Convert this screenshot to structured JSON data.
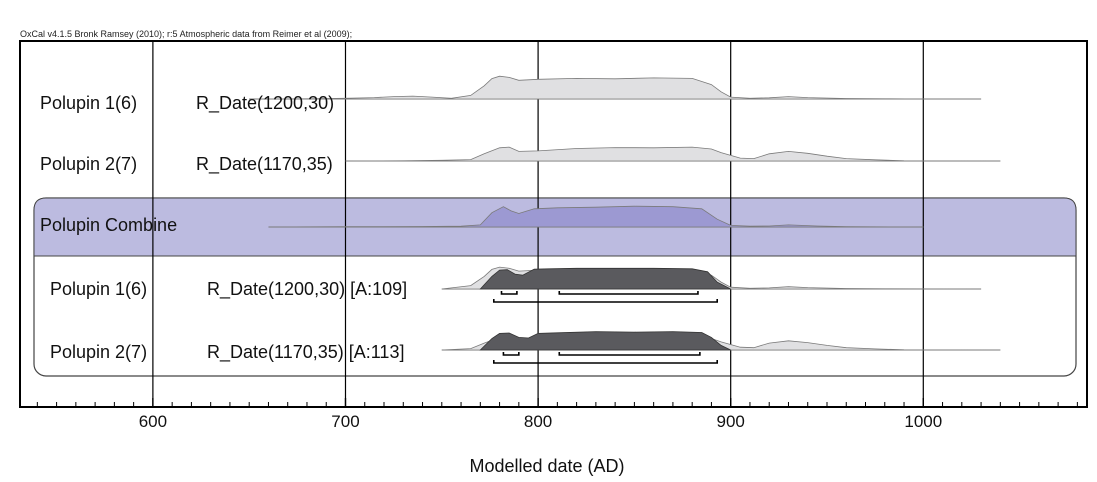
{
  "header": "OxCal v4.1.5 Bronk Ramsey (2010); r:5 Atmospheric data from Reimer et al (2009);",
  "chart_data": {
    "type": "area",
    "title": "",
    "xlabel": "Modelled date (AD)",
    "xlim": [
      531,
      1085
    ],
    "xticks": [
      600,
      700,
      800,
      900,
      1000
    ],
    "minor_tick_step": 10,
    "grid": "vertical lines at major ticks",
    "colors": {
      "prior_fill": "#e0e0e2",
      "prior_stroke": "#7a7a7a",
      "posterior_fill": "#5a5a5e",
      "combine_fill": "#9c99d2",
      "combine_band": "#bcbbe0",
      "frame": "#000000"
    },
    "rows": [
      {
        "label": "Polupin 1(6)",
        "model": "R_Date(1200,30)",
        "kind": "prior",
        "range": [
          650,
          1030
        ],
        "x": [
          650,
          680,
          700,
          715,
          725,
          735,
          745,
          755,
          765,
          772,
          776,
          780,
          785,
          790,
          800,
          820,
          840,
          860,
          880,
          890,
          895,
          900,
          910,
          920,
          930,
          940,
          960,
          980,
          1000,
          1030
        ],
        "y": [
          0.0,
          0.01,
          0.03,
          0.06,
          0.1,
          0.12,
          0.08,
          0.03,
          0.15,
          0.55,
          0.85,
          0.95,
          0.9,
          0.78,
          0.82,
          0.86,
          0.84,
          0.88,
          0.86,
          0.6,
          0.3,
          0.08,
          0.03,
          0.05,
          0.1,
          0.06,
          0.02,
          0.01,
          0.0,
          0.0
        ]
      },
      {
        "label": "Polupin 2(7)",
        "model": "R_Date(1170,35)",
        "kind": "prior",
        "range": [
          700,
          1040
        ],
        "x": [
          700,
          730,
          750,
          765,
          772,
          780,
          785,
          790,
          800,
          820,
          840,
          860,
          880,
          890,
          895,
          905,
          912,
          920,
          930,
          940,
          950,
          960,
          975,
          990,
          1040
        ],
        "y": [
          0.0,
          0.01,
          0.03,
          0.06,
          0.3,
          0.55,
          0.58,
          0.4,
          0.42,
          0.52,
          0.56,
          0.55,
          0.58,
          0.5,
          0.35,
          0.12,
          0.1,
          0.3,
          0.4,
          0.32,
          0.2,
          0.1,
          0.05,
          0.01,
          0.0
        ]
      },
      {
        "label": "Polupin Combine",
        "model": "",
        "kind": "combine",
        "range": [
          660,
          1000
        ],
        "x": [
          660,
          700,
          720,
          740,
          760,
          770,
          776,
          782,
          786,
          790,
          798,
          810,
          830,
          850,
          870,
          885,
          893,
          900,
          910,
          920,
          930,
          945,
          960,
          1000
        ],
        "y": [
          0.0,
          0.01,
          0.01,
          0.02,
          0.03,
          0.08,
          0.55,
          0.78,
          0.62,
          0.52,
          0.7,
          0.74,
          0.76,
          0.8,
          0.78,
          0.7,
          0.3,
          0.06,
          0.03,
          0.04,
          0.08,
          0.04,
          0.01,
          0.0
        ]
      },
      {
        "label": "Polupin 1(6)",
        "model": "R_Date(1200,30) [A:109]",
        "kind": "posterior",
        "range": [
          750,
          1030
        ],
        "prior_x": [
          750,
          765,
          772,
          776,
          780,
          785,
          790,
          800,
          820,
          840,
          860,
          880,
          890,
          895,
          900,
          910,
          920,
          930,
          940,
          960,
          980,
          1030
        ],
        "prior_y": [
          0.0,
          0.15,
          0.55,
          0.85,
          0.95,
          0.9,
          0.78,
          0.82,
          0.86,
          0.84,
          0.88,
          0.86,
          0.6,
          0.3,
          0.08,
          0.03,
          0.05,
          0.1,
          0.06,
          0.02,
          0.01,
          0.0
        ],
        "x": [
          770,
          776,
          780,
          784,
          788,
          792,
          798,
          806,
          820,
          840,
          860,
          880,
          888,
          893,
          900
        ],
        "y": [
          0.0,
          0.55,
          0.82,
          0.84,
          0.65,
          0.6,
          0.86,
          0.88,
          0.9,
          0.9,
          0.9,
          0.88,
          0.75,
          0.3,
          0.0
        ],
        "hpd_1sigma": [
          [
            781,
            789
          ],
          [
            811,
            883
          ]
        ],
        "hpd_2sigma": [
          [
            777,
            893
          ]
        ]
      },
      {
        "label": "Polupin 2(7)",
        "model": "R_Date(1170,35) [A:113]",
        "kind": "posterior",
        "range": [
          750,
          1040
        ],
        "prior_x": [
          750,
          765,
          772,
          780,
          785,
          790,
          800,
          820,
          840,
          860,
          880,
          890,
          895,
          905,
          912,
          920,
          930,
          940,
          950,
          960,
          975,
          990,
          1040
        ],
        "prior_y": [
          0.0,
          0.06,
          0.3,
          0.55,
          0.58,
          0.4,
          0.42,
          0.52,
          0.56,
          0.55,
          0.58,
          0.5,
          0.35,
          0.12,
          0.1,
          0.3,
          0.4,
          0.32,
          0.2,
          0.1,
          0.05,
          0.01,
          0.0
        ],
        "x": [
          770,
          776,
          780,
          785,
          790,
          795,
          800,
          810,
          830,
          850,
          870,
          885,
          890,
          895,
          900
        ],
        "y": [
          0.0,
          0.5,
          0.72,
          0.74,
          0.55,
          0.52,
          0.72,
          0.75,
          0.8,
          0.78,
          0.8,
          0.76,
          0.55,
          0.2,
          0.0
        ],
        "hpd_1sigma": [
          [
            782,
            790
          ],
          [
            811,
            884
          ]
        ],
        "hpd_2sigma": [
          [
            777,
            893
          ]
        ]
      }
    ]
  }
}
